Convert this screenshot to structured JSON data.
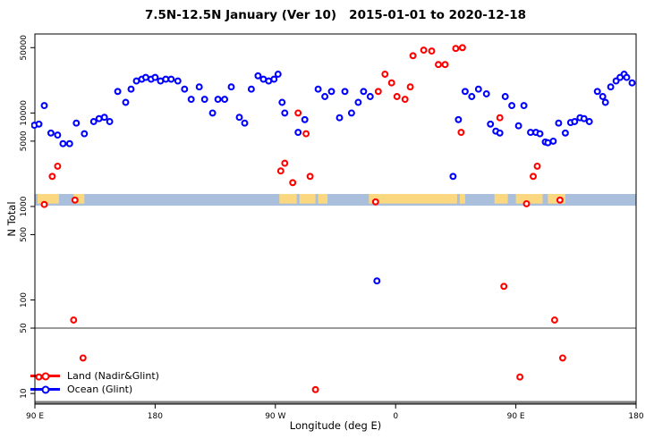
{
  "chart_data": {
    "type": "scatter",
    "title": "7.5N-12.5N January (Ver 10)   2015-01-01 to 2020-12-18",
    "xlabel": "Longitude (deg E)",
    "ylabel": "N Total",
    "x_axis": {
      "min": 90,
      "max": 540,
      "ticks": [
        {
          "value": 90,
          "label": "90 E"
        },
        {
          "value": 180,
          "label": "180"
        },
        {
          "value": 270,
          "label": "90 W"
        },
        {
          "value": 360,
          "label": "0"
        },
        {
          "value": 450,
          "label": "90 E"
        },
        {
          "value": 540,
          "label": "180"
        }
      ]
    },
    "y_axis": {
      "log": true,
      "min": 7.7,
      "max": 70000,
      "ticks": [
        {
          "value": 10,
          "label": "10"
        },
        {
          "value": 50,
          "label": "50"
        },
        {
          "value": 100,
          "label": "100"
        },
        {
          "value": 500,
          "label": "500"
        },
        {
          "value": 1000,
          "label": "1000"
        },
        {
          "value": 5000,
          "label": "5000"
        },
        {
          "value": 10000,
          "label": "10000"
        },
        {
          "value": 50000,
          "label": "50000"
        }
      ]
    },
    "reference_lines": [
      {
        "y": 50,
        "color": "#5f5f5f",
        "width": 1.3
      },
      {
        "y": 8.05,
        "color": "#7f7f7f",
        "width": 3
      }
    ],
    "map_band": {
      "y_top": 1360,
      "y_bottom": 1020,
      "ocean_color": "#A9BFDB",
      "land_color": "#FBD87F",
      "land_segments": [
        [
          92,
          108
        ],
        [
          119,
          127
        ],
        [
          273,
          286
        ],
        [
          288,
          300
        ],
        [
          302,
          309
        ],
        [
          340,
          406
        ],
        [
          408,
          412
        ],
        [
          434,
          444
        ],
        [
          450,
          470
        ],
        [
          474,
          487
        ]
      ]
    },
    "series": [
      {
        "id": "land",
        "name": "Land (Nadir&Glint)",
        "color": "#FF0000",
        "points": [
          [
            93,
            15
          ],
          [
            97,
            1050
          ],
          [
            103,
            2100
          ],
          [
            107,
            2700
          ],
          [
            119,
            61
          ],
          [
            120,
            1170
          ],
          [
            126,
            24
          ],
          [
            274,
            2400
          ],
          [
            277,
            2900
          ],
          [
            283,
            1800
          ],
          [
            287,
            10000
          ],
          [
            293,
            6000
          ],
          [
            296,
            2100
          ],
          [
            300,
            11
          ],
          [
            345,
            1120
          ],
          [
            347,
            17000
          ],
          [
            352,
            26000
          ],
          [
            357,
            21000
          ],
          [
            361,
            15000
          ],
          [
            367,
            14000
          ],
          [
            371,
            19000
          ],
          [
            373,
            41000
          ],
          [
            381,
            47000
          ],
          [
            387,
            46000
          ],
          [
            392,
            33000
          ],
          [
            397,
            33000
          ],
          [
            405,
            49000
          ],
          [
            410,
            50000
          ],
          [
            409,
            6200
          ],
          [
            438,
            8900
          ],
          [
            441,
            140
          ],
          [
            453,
            15
          ],
          [
            458,
            1070
          ],
          [
            463,
            2100
          ],
          [
            466,
            2700
          ],
          [
            479,
            61
          ],
          [
            483,
            1170
          ],
          [
            485,
            24
          ]
        ]
      },
      {
        "id": "ocean",
        "name": "Ocean (Glint)",
        "color": "#0000FF",
        "points": [
          [
            89.6,
            7400
          ],
          [
            93,
            7600
          ],
          [
            97,
            12000
          ],
          [
            102,
            6100
          ],
          [
            107,
            5800
          ],
          [
            111,
            4700
          ],
          [
            116,
            4700
          ],
          [
            121,
            7800
          ],
          [
            127,
            6000
          ],
          [
            134,
            8100
          ],
          [
            138,
            8700
          ],
          [
            142,
            9000
          ],
          [
            146,
            8100
          ],
          [
            152,
            17000
          ],
          [
            158,
            13000
          ],
          [
            162,
            18000
          ],
          [
            166,
            22000
          ],
          [
            170,
            23000
          ],
          [
            173,
            24000
          ],
          [
            177,
            23000
          ],
          [
            180,
            24000
          ],
          [
            184,
            22000
          ],
          [
            188,
            23000
          ],
          [
            192,
            23000
          ],
          [
            197,
            22000
          ],
          [
            202,
            18000
          ],
          [
            207,
            14000
          ],
          [
            213,
            19000
          ],
          [
            217,
            14000
          ],
          [
            223,
            10000
          ],
          [
            227,
            14000
          ],
          [
            232,
            14000
          ],
          [
            237,
            19000
          ],
          [
            243,
            9000
          ],
          [
            247,
            7800
          ],
          [
            252,
            18000
          ],
          [
            257,
            25000
          ],
          [
            261,
            23000
          ],
          [
            265,
            22000
          ],
          [
            269,
            23000
          ],
          [
            272,
            26000
          ],
          [
            275,
            13000
          ],
          [
            277,
            10000
          ],
          [
            287,
            6200
          ],
          [
            292,
            8500
          ],
          [
            302,
            18000
          ],
          [
            307,
            15000
          ],
          [
            312,
            17000
          ],
          [
            318,
            8900
          ],
          [
            322,
            17000
          ],
          [
            327,
            10000
          ],
          [
            332,
            13000
          ],
          [
            336,
            17000
          ],
          [
            341,
            15000
          ],
          [
            346,
            160
          ],
          [
            403,
            2100
          ],
          [
            407,
            8500
          ],
          [
            412,
            17000
          ],
          [
            417,
            15000
          ],
          [
            422,
            18000
          ],
          [
            428,
            16000
          ],
          [
            431,
            7600
          ],
          [
            435,
            6400
          ],
          [
            438,
            6100
          ],
          [
            442,
            15000
          ],
          [
            447,
            12000
          ],
          [
            452,
            7300
          ],
          [
            456,
            12000
          ],
          [
            461,
            6200
          ],
          [
            465,
            6200
          ],
          [
            468,
            6000
          ],
          [
            472,
            4900
          ],
          [
            474,
            4800
          ],
          [
            478,
            5000
          ],
          [
            482,
            7800
          ],
          [
            487,
            6100
          ],
          [
            491,
            7900
          ],
          [
            494,
            8100
          ],
          [
            498,
            8900
          ],
          [
            501,
            8700
          ],
          [
            505,
            8100
          ],
          [
            511,
            17000
          ],
          [
            515,
            15000
          ],
          [
            517,
            13000
          ],
          [
            521,
            19000
          ],
          [
            525,
            22000
          ],
          [
            528,
            24000
          ],
          [
            531,
            26000
          ],
          [
            533,
            24000
          ],
          [
            537,
            21000
          ]
        ]
      }
    ]
  }
}
